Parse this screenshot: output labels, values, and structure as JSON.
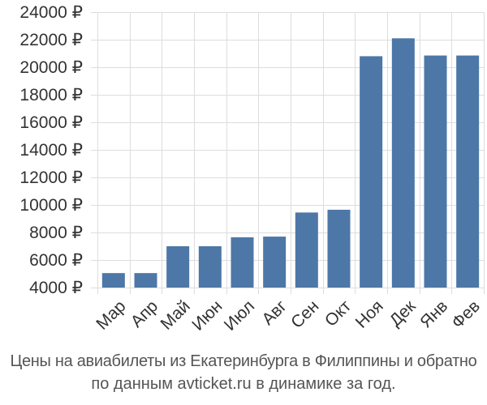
{
  "chart_data": {
    "type": "bar",
    "categories": [
      "Мар",
      "Апр",
      "Май",
      "Июн",
      "Июл",
      "Авг",
      "Сен",
      "Окт",
      "Ноя",
      "Дек",
      "Янв",
      "Фев"
    ],
    "values": [
      5050,
      5050,
      7000,
      7000,
      7650,
      7700,
      9450,
      9650,
      20800,
      22100,
      20850,
      20850
    ],
    "ylim": [
      4000,
      24000
    ],
    "yticks": [
      4000,
      6000,
      8000,
      10000,
      12000,
      14000,
      16000,
      18000,
      20000,
      22000,
      24000
    ],
    "ytick_labels": [
      "4000 ₽",
      "6000 ₽",
      "8000 ₽",
      "10000 ₽",
      "12000 ₽",
      "14000 ₽",
      "16000 ₽",
      "18000 ₽",
      "20000 ₽",
      "22000 ₽",
      "24000 ₽"
    ],
    "grid": true,
    "legend": "none",
    "bar_color": "#4d77a7",
    "grid_color": "#dddddd"
  },
  "caption": {
    "line1": "Цены на авиабилеты из Екатеринбурга в Филиппины и обратно",
    "line2": "по данным avticket.ru в динамике за год."
  }
}
